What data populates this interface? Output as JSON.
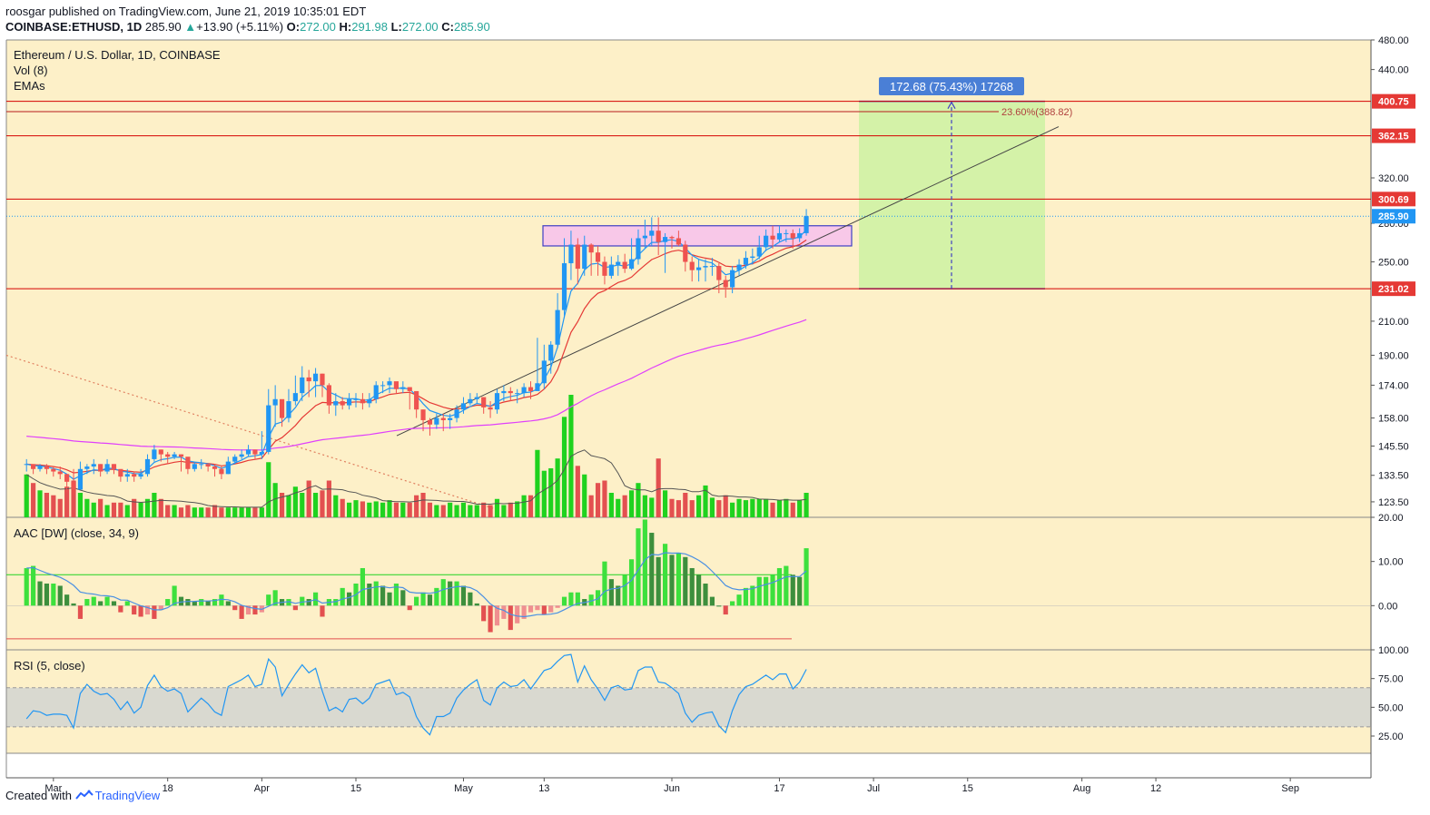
{
  "header": {
    "author": "roosgar",
    "published_text": "published on TradingView.com, June 21, 2019 10:35:01 EDT",
    "symbol": "COINBASE:ETHUSD, 1D",
    "last": "285.90",
    "change_arrow": "▲",
    "change": "+13.90 (+5.11%)",
    "o_label": "O:",
    "o": "272.00",
    "h_label": "H:",
    "h": "291.98",
    "l_label": "L:",
    "l": "272.00",
    "c_label": "C:",
    "c": "285.90"
  },
  "panes": {
    "main_title": "Ethereum / U.S. Dollar, 1D, COINBASE",
    "vol_label": "Vol (8)",
    "ema_label": "EMAs",
    "aac_label": "AAC [DW] (close, 34, 9)",
    "rsi_label": "RSI (5, close)"
  },
  "measure": {
    "label": "172.68 (75.43%) 17268",
    "fib_label": "23.60%(388.82)"
  },
  "footer": {
    "created": "Created with",
    "brand": "TradingView"
  },
  "colors": {
    "pane_bg": "#fdf0c8",
    "up": "#2196f3",
    "down": "#ef5350",
    "vol_up": "#1fd21f",
    "vol_down": "#e35050",
    "level_line": "#d50000",
    "ema_fast": "#2196f3",
    "ema_slow": "#e53935",
    "ema_long": "#e040fb",
    "target_zone": "#d4f2a8",
    "range_box": "#f8c8e8",
    "measure_label_bg": "#4a7fd6"
  },
  "chart_data": [
    {
      "type": "candlestick",
      "title": "Ethereum / U.S. Dollar, 1D, COINBASE",
      "x_tick_labels": [
        "Mar",
        "18",
        "Apr",
        "15",
        "May",
        "13",
        "Jun",
        "17",
        "Jul",
        "15",
        "Aug",
        "12",
        "Sep"
      ],
      "y_tick_labels": [
        "123.50",
        "133.50",
        "145.50",
        "158.00",
        "174.00",
        "190.00",
        "210.00",
        "250.00",
        "280.00",
        "320.00",
        "440.00",
        "480.00"
      ],
      "price_levels": [
        "400.75",
        "362.15",
        "300.69",
        "285.90",
        "231.02"
      ],
      "last_price": "285.90",
      "ylim": [
        118,
        480
      ],
      "scale": "log",
      "x": [
        "2019-02-25",
        "2019-02-26",
        "2019-02-27",
        "2019-02-28",
        "2019-03-01",
        "2019-03-02",
        "2019-03-03",
        "2019-03-04",
        "2019-03-05",
        "2019-03-06",
        "2019-03-07",
        "2019-03-08",
        "2019-03-09",
        "2019-03-10",
        "2019-03-11",
        "2019-03-12",
        "2019-03-13",
        "2019-03-14",
        "2019-03-15",
        "2019-03-16",
        "2019-03-17",
        "2019-03-18",
        "2019-03-19",
        "2019-03-20",
        "2019-03-21",
        "2019-03-22",
        "2019-03-23",
        "2019-03-24",
        "2019-03-25",
        "2019-03-26",
        "2019-03-27",
        "2019-03-28",
        "2019-03-29",
        "2019-03-30",
        "2019-03-31",
        "2019-04-01",
        "2019-04-02",
        "2019-04-03",
        "2019-04-04",
        "2019-04-05",
        "2019-04-06",
        "2019-04-07",
        "2019-04-08",
        "2019-04-09",
        "2019-04-10",
        "2019-04-11",
        "2019-04-12",
        "2019-04-13",
        "2019-04-14",
        "2019-04-15",
        "2019-04-16",
        "2019-04-17",
        "2019-04-18",
        "2019-04-19",
        "2019-04-20",
        "2019-04-21",
        "2019-04-22",
        "2019-04-23",
        "2019-04-24",
        "2019-04-25",
        "2019-04-26",
        "2019-04-27",
        "2019-04-28",
        "2019-04-29",
        "2019-04-30",
        "2019-05-01",
        "2019-05-02",
        "2019-05-03",
        "2019-05-04",
        "2019-05-05",
        "2019-05-06",
        "2019-05-07",
        "2019-05-08",
        "2019-05-09",
        "2019-05-10",
        "2019-05-11",
        "2019-05-12",
        "2019-05-13",
        "2019-05-14",
        "2019-05-15",
        "2019-05-16",
        "2019-05-17",
        "2019-05-18",
        "2019-05-19",
        "2019-05-20",
        "2019-05-21",
        "2019-05-22",
        "2019-05-23",
        "2019-05-24",
        "2019-05-25",
        "2019-05-26",
        "2019-05-27",
        "2019-05-28",
        "2019-05-29",
        "2019-05-30",
        "2019-05-31",
        "2019-06-01",
        "2019-06-02",
        "2019-06-03",
        "2019-06-04",
        "2019-06-05",
        "2019-06-06",
        "2019-06-07",
        "2019-06-08",
        "2019-06-09",
        "2019-06-10",
        "2019-06-11",
        "2019-06-12",
        "2019-06-13",
        "2019-06-14",
        "2019-06-15",
        "2019-06-16",
        "2019-06-17",
        "2019-06-18",
        "2019-06-19",
        "2019-06-20",
        "2019-06-21"
      ],
      "close": [
        138,
        136,
        137,
        136,
        135,
        134,
        131,
        128,
        136,
        137,
        138,
        135,
        138,
        136,
        133,
        134,
        133,
        134,
        140,
        144,
        142,
        141,
        142,
        141,
        136,
        138,
        138,
        137,
        136,
        134,
        139,
        141,
        142,
        144,
        142,
        143,
        164,
        167,
        158,
        166,
        170,
        178,
        176,
        180,
        174,
        164,
        166,
        164,
        167,
        167,
        165,
        167,
        174,
        174,
        176,
        172,
        173,
        171,
        162,
        157,
        155,
        158,
        157,
        158,
        162,
        165,
        167,
        168,
        163,
        162,
        170,
        171,
        170,
        170,
        173,
        171,
        175,
        187,
        196,
        217,
        249,
        263,
        245,
        263,
        257,
        250,
        240,
        248,
        250,
        245,
        252,
        268,
        270,
        274,
        265,
        269,
        268,
        263,
        250,
        244,
        246,
        247,
        247,
        237,
        232,
        244,
        248,
        253,
        254,
        261,
        270,
        267,
        272,
        272,
        268,
        272,
        286
      ],
      "high": [
        140,
        138,
        138,
        138,
        137,
        137,
        134,
        136,
        139,
        138,
        140,
        138,
        140,
        138,
        135,
        136,
        135,
        136,
        142,
        146,
        144,
        143,
        143,
        142,
        140,
        139,
        140,
        138,
        138,
        137,
        141,
        142,
        144,
        146,
        144,
        152,
        172,
        174,
        166,
        172,
        179,
        184,
        182,
        183,
        180,
        175,
        170,
        168,
        170,
        170,
        170,
        170,
        176,
        176,
        178,
        175,
        176,
        173,
        170,
        162,
        158,
        160,
        160,
        160,
        164,
        168,
        170,
        170,
        168,
        166,
        172,
        174,
        173,
        172,
        175,
        176,
        200,
        196,
        198,
        228,
        268,
        274,
        268,
        270,
        264,
        262,
        254,
        254,
        255,
        256,
        268,
        275,
        283,
        285,
        285,
        272,
        270,
        274,
        266,
        254,
        252,
        252,
        253,
        249,
        240,
        247,
        252,
        258,
        260,
        270,
        275,
        278,
        278,
        275,
        275,
        276,
        292
      ],
      "low": [
        135,
        134,
        135,
        134,
        133,
        132,
        127,
        126,
        128,
        134,
        134,
        133,
        134,
        134,
        131,
        131,
        131,
        132,
        133,
        139,
        139,
        138,
        140,
        135,
        134,
        135,
        136,
        135,
        133,
        132,
        134,
        138,
        140,
        141,
        140,
        140,
        142,
        154,
        154,
        156,
        164,
        166,
        168,
        168,
        168,
        160,
        159,
        162,
        162,
        163,
        162,
        163,
        165,
        170,
        170,
        170,
        170,
        162,
        158,
        152,
        150,
        153,
        152,
        153,
        156,
        160,
        164,
        165,
        160,
        158,
        160,
        166,
        166,
        165,
        168,
        167,
        172,
        172,
        180,
        194,
        212,
        237,
        234,
        240,
        240,
        240,
        234,
        238,
        240,
        242,
        244,
        248,
        260,
        262,
        255,
        242,
        260,
        262,
        243,
        236,
        236,
        236,
        240,
        228,
        225,
        228,
        240,
        245,
        248,
        252,
        258,
        260,
        265,
        265,
        260,
        265,
        270
      ],
      "volume_relative": [
        0.35,
        0.28,
        0.22,
        0.2,
        0.18,
        0.15,
        0.25,
        0.3,
        0.2,
        0.15,
        0.12,
        0.15,
        0.1,
        0.12,
        0.12,
        0.1,
        0.15,
        0.12,
        0.15,
        0.2,
        0.15,
        0.1,
        0.1,
        0.08,
        0.1,
        0.08,
        0.08,
        0.08,
        0.1,
        0.08,
        0.08,
        0.08,
        0.08,
        0.08,
        0.08,
        0.08,
        0.45,
        0.28,
        0.2,
        0.18,
        0.25,
        0.2,
        0.3,
        0.2,
        0.22,
        0.3,
        0.18,
        0.15,
        0.12,
        0.14,
        0.13,
        0.12,
        0.13,
        0.12,
        0.14,
        0.12,
        0.12,
        0.12,
        0.18,
        0.2,
        0.12,
        0.1,
        0.1,
        0.12,
        0.1,
        0.12,
        0.1,
        0.1,
        0.12,
        0.1,
        0.15,
        0.1,
        0.12,
        0.13,
        0.18,
        0.18,
        0.55,
        0.38,
        0.4,
        0.48,
        0.82,
        1.0,
        0.42,
        0.35,
        0.18,
        0.28,
        0.3,
        0.2,
        0.15,
        0.18,
        0.22,
        0.28,
        0.18,
        0.16,
        0.48,
        0.22,
        0.15,
        0.14,
        0.2,
        0.14,
        0.18,
        0.26,
        0.16,
        0.14,
        0.18,
        0.12,
        0.15,
        0.14,
        0.15,
        0.15,
        0.15,
        0.12,
        0.14,
        0.15,
        0.12,
        0.14,
        0.2
      ]
    },
    {
      "type": "bar",
      "title": "AAC [DW] (close, 34, 9)",
      "y_tick_labels": [
        "20.00",
        "10.00",
        "0.00"
      ],
      "ylim": [
        -10,
        20
      ],
      "values": [
        8.5,
        9.0,
        5.5,
        5.0,
        5.0,
        4.5,
        2.5,
        0.5,
        -3,
        1.5,
        2.0,
        1.0,
        2.0,
        1.0,
        -1.5,
        1.0,
        -2.0,
        -2.5,
        -2.0,
        -3.0,
        -1.0,
        1.5,
        4.5,
        2.0,
        1.5,
        1.0,
        1.5,
        1.0,
        1.5,
        2.5,
        1.0,
        -1.0,
        -3.0,
        -2.0,
        -2.0,
        -1.5,
        2.5,
        3.5,
        1.5,
        1.5,
        -1.0,
        2.0,
        1.5,
        3.0,
        -2.5,
        1.5,
        1.5,
        4.0,
        3.0,
        5.0,
        8.5,
        5.0,
        5.5,
        4.5,
        3.0,
        5.0,
        3.5,
        -1.0,
        2.0,
        3.0,
        2.5,
        4.0,
        6.0,
        5.5,
        5.5,
        4.5,
        3.0,
        0.5,
        -3.5,
        -6.0,
        -4.5,
        -3.0,
        -5.5,
        -4.0,
        -3.0,
        -1.5,
        -1.0,
        -2.0,
        -1.5,
        -0.5,
        2.0,
        3.0,
        3.0,
        1.5,
        2.5,
        3.5,
        10.0,
        6.0,
        4.5,
        7.0,
        10.5,
        17.5,
        19.5,
        16.5,
        11.0,
        14.0,
        11.5,
        12.0,
        11.0,
        8.5,
        7.0,
        5.0,
        2.0,
        0.0,
        -2.0,
        1.0,
        2.5,
        4.0,
        4.5,
        6.5,
        6.5,
        7.0,
        8.5,
        9.0,
        7.0,
        6.5,
        13.0
      ]
    },
    {
      "type": "line",
      "title": "RSI (5, close)",
      "y_tick_labels": [
        "100.00",
        "75.00",
        "50.00",
        "25.00"
      ],
      "ylim": [
        10,
        100
      ],
      "band": [
        33,
        67
      ],
      "values": [
        40,
        47,
        46,
        43,
        44,
        44,
        43,
        32,
        62,
        70,
        64,
        61,
        62,
        57,
        48,
        55,
        45,
        50,
        69,
        78,
        68,
        64,
        66,
        62,
        46,
        52,
        58,
        53,
        46,
        43,
        68,
        71,
        74,
        78,
        68,
        70,
        92,
        85,
        60,
        70,
        79,
        87,
        80,
        84,
        64,
        47,
        50,
        46,
        57,
        58,
        53,
        58,
        70,
        72,
        74,
        61,
        63,
        59,
        42,
        32,
        26,
        42,
        42,
        45,
        58,
        65,
        70,
        74,
        56,
        52,
        67,
        72,
        68,
        69,
        74,
        66,
        74,
        82,
        84,
        90,
        95,
        96,
        72,
        86,
        74,
        66,
        56,
        67,
        69,
        65,
        66,
        82,
        85,
        85,
        72,
        71,
        67,
        62,
        45,
        37,
        43,
        45,
        46,
        34,
        28,
        47,
        61,
        68,
        70,
        74,
        78,
        74,
        79,
        79,
        66,
        72,
        83
      ]
    }
  ]
}
